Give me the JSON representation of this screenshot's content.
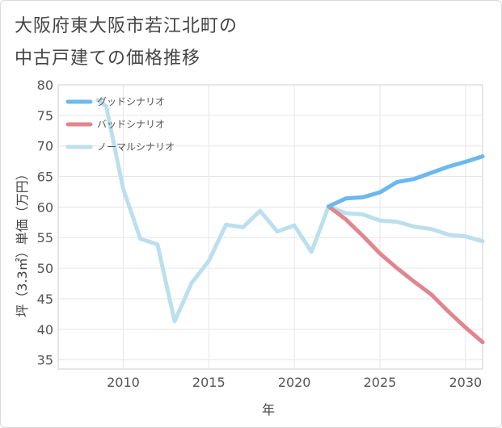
{
  "title_line1": "大阪府東大阪市若江北町の",
  "title_line2": "中古戸建ての価格推移",
  "chart_data": {
    "type": "line",
    "title": "大阪府東大阪市若江北町の中古戸建ての価格推移",
    "xlabel": "年",
    "ylabel": "坪（3.3㎡）単価（万円）",
    "xlim": [
      2006.2,
      2031
    ],
    "ylim": [
      33.5,
      80
    ],
    "xticks": [
      2010,
      2015,
      2020,
      2025,
      2030
    ],
    "yticks": [
      35,
      40,
      45,
      50,
      55,
      60,
      65,
      70,
      75,
      80
    ],
    "grid": true,
    "legend_position": "top-left",
    "series": [
      {
        "name": "グッドシナリオ",
        "color": "#6cb8ee",
        "x": [
          2022,
          2023,
          2024,
          2025,
          2026,
          2027,
          2028,
          2029,
          2030,
          2031
        ],
        "values": [
          60.1,
          61.4,
          61.6,
          62.4,
          64.1,
          64.6,
          65.6,
          66.6,
          67.4,
          68.3
        ]
      },
      {
        "name": "バッドシナリオ",
        "color": "#e0868e",
        "x": [
          2022,
          2023,
          2024,
          2025,
          2026,
          2027,
          2028,
          2029,
          2030,
          2031
        ],
        "values": [
          60.1,
          58.0,
          55.3,
          52.4,
          50.0,
          47.8,
          45.7,
          42.9,
          40.3,
          37.9
        ]
      },
      {
        "name": "ノーマルシナリオ",
        "color": "#bcdfee",
        "x": [
          2008.5,
          2009,
          2010,
          2011,
          2012,
          2013,
          2014,
          2015,
          2016,
          2017,
          2018,
          2019,
          2020,
          2021,
          2022,
          2023,
          2024,
          2025,
          2026,
          2027,
          2028,
          2029,
          2030,
          2031
        ],
        "values": [
          77.5,
          76.5,
          63.0,
          54.8,
          53.9,
          41.3,
          47.6,
          51.2,
          57.1,
          56.7,
          59.4,
          56.0,
          57.0,
          52.7,
          60.1,
          59.0,
          58.8,
          57.8,
          57.6,
          56.8,
          56.4,
          55.5,
          55.2,
          54.4
        ]
      }
    ]
  }
}
